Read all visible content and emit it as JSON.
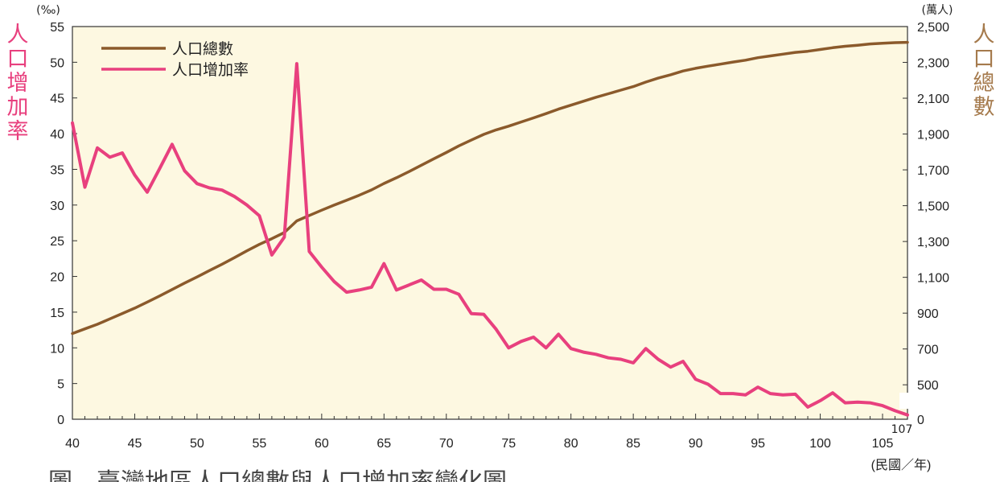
{
  "chart_data": {
    "type": "line",
    "x_label": "(民國／年)",
    "left_axis": {
      "title": "人口增加率",
      "unit": "(‰)",
      "ylim": [
        0,
        55
      ],
      "ticks": [
        0,
        5,
        10,
        15,
        20,
        25,
        30,
        35,
        40,
        45,
        50,
        55
      ]
    },
    "right_axis": {
      "title": "人口總數",
      "unit": "(萬人)",
      "ylim": [
        0,
        2500
      ],
      "ticks": [
        0,
        500,
        700,
        900,
        1100,
        1300,
        1500,
        1700,
        1900,
        2100,
        2300,
        2500
      ],
      "tick_labels": [
        "0",
        "500",
        "700",
        "900",
        "1,100",
        "1,300",
        "1,500",
        "1,700",
        "1,900",
        "2,100",
        "2,300",
        "2,500"
      ],
      "break_symbol": "≈"
    },
    "x_ticks": [
      40,
      45,
      50,
      55,
      60,
      65,
      70,
      75,
      80,
      85,
      90,
      95,
      100,
      105
    ],
    "x_end_label": "107",
    "xlim": [
      40,
      107
    ],
    "grid": false,
    "legend_position": "top-left",
    "series": [
      {
        "name": "人口總數",
        "axis": "right",
        "color": "#8b5a2b",
        "x": [
          40,
          41,
          42,
          43,
          44,
          45,
          46,
          47,
          48,
          49,
          50,
          51,
          52,
          53,
          54,
          55,
          56,
          57,
          58,
          59,
          60,
          61,
          62,
          63,
          64,
          65,
          66,
          67,
          68,
          69,
          70,
          71,
          72,
          73,
          74,
          75,
          76,
          77,
          78,
          79,
          80,
          81,
          82,
          83,
          84,
          85,
          86,
          87,
          88,
          89,
          90,
          91,
          92,
          93,
          94,
          95,
          96,
          97,
          98,
          99,
          100,
          101,
          102,
          103,
          104,
          105,
          106,
          107
        ],
        "values": [
          786,
          812,
          838,
          868,
          898,
          928,
          962,
          996,
          1032,
          1068,
          1102,
          1138,
          1173,
          1210,
          1248,
          1284,
          1316,
          1350,
          1415,
          1445,
          1475,
          1503,
          1530,
          1558,
          1588,
          1624,
          1656,
          1690,
          1726,
          1762,
          1797,
          1834,
          1866,
          1898,
          1923,
          1944,
          1967,
          1990,
          2014,
          2039,
          2061,
          2083,
          2105,
          2125,
          2145,
          2165,
          2190,
          2212,
          2231,
          2252,
          2267,
          2279,
          2290,
          2302,
          2312,
          2326,
          2336,
          2346,
          2356,
          2362,
          2372,
          2382,
          2390,
          2396,
          2403,
          2407,
          2410,
          2412
        ]
      },
      {
        "name": "人口增加率",
        "axis": "left",
        "color": "#e8407e",
        "x": [
          40,
          41,
          42,
          43,
          44,
          45,
          46,
          47,
          48,
          49,
          50,
          51,
          52,
          53,
          54,
          55,
          56,
          57,
          58,
          59,
          60,
          61,
          62,
          63,
          64,
          65,
          66,
          67,
          68,
          69,
          70,
          71,
          72,
          73,
          74,
          75,
          76,
          77,
          78,
          79,
          80,
          81,
          82,
          83,
          84,
          85,
          86,
          87,
          88,
          89,
          90,
          91,
          92,
          93,
          94,
          95,
          96,
          97,
          98,
          99,
          100,
          101,
          102,
          103,
          104,
          105,
          106,
          107
        ],
        "values": [
          41.5,
          32.5,
          38,
          36.7,
          37.3,
          34.2,
          31.8,
          35.1,
          38.5,
          34.8,
          33,
          32.4,
          32.1,
          31.2,
          30,
          28.5,
          23,
          25.5,
          49.8,
          23.5,
          21.3,
          19.3,
          17.8,
          18.1,
          18.5,
          21.8,
          18.1,
          18.8,
          19.5,
          18.2,
          18.2,
          17.5,
          14.8,
          14.7,
          12.6,
          10,
          10.9,
          11.5,
          10,
          11.9,
          9.9,
          9.4,
          9.1,
          8.6,
          8.4,
          7.9,
          9.9,
          8.4,
          7.3,
          8.1,
          5.6,
          4.9,
          3.6,
          3.6,
          3.4,
          4.5,
          3.6,
          3.4,
          3.5,
          1.7,
          2.6,
          3.7,
          2.3,
          2.4,
          2.3,
          1.9,
          1.2,
          0.6
        ]
      }
    ]
  }
}
